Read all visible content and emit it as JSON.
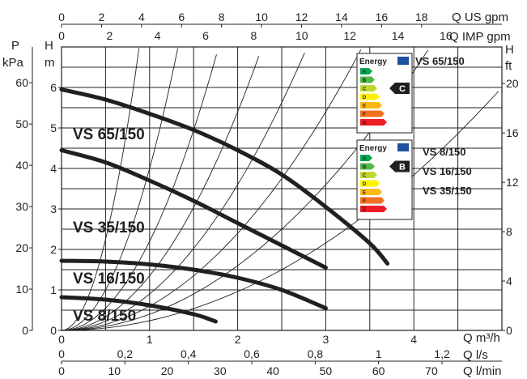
{
  "chart_data": {
    "type": "line",
    "title": "",
    "axes": {
      "bottom_primary": {
        "label": "Q m³/h",
        "ticks": [
          "0",
          "1",
          "2",
          "3",
          "4"
        ],
        "range": [
          0,
          5
        ]
      },
      "bottom_secondary_1": {
        "label": "Q l/s",
        "ticks": [
          "0",
          "0,2",
          "0,4",
          "0,6",
          "0,8",
          "1",
          "1,2"
        ]
      },
      "bottom_secondary_2": {
        "label": "Q l/min",
        "ticks": [
          "0",
          "10",
          "20",
          "30",
          "40",
          "50",
          "60",
          "70"
        ]
      },
      "top_primary": {
        "label": "Q US gpm",
        "ticks": [
          "0",
          "2",
          "4",
          "6",
          "8",
          "10",
          "12",
          "14",
          "16",
          "18"
        ]
      },
      "top_secondary": {
        "label": "Q IMP gpm",
        "ticks": [
          "0",
          "2",
          "4",
          "6",
          "8",
          "10",
          "12",
          "14",
          "16"
        ]
      },
      "left_primary": {
        "label_top": "H",
        "label_bottom": "m",
        "ticks": [
          "0",
          "1",
          "2",
          "3",
          "4",
          "5",
          "6"
        ],
        "range": [
          0,
          7
        ]
      },
      "left_secondary": {
        "label_top": "P",
        "label_bottom": "kPa",
        "ticks": [
          "0",
          "10",
          "20",
          "30",
          "40",
          "50",
          "60"
        ]
      },
      "right": {
        "label_top": "H",
        "label_bottom": "ft",
        "ticks": [
          "0",
          "4",
          "8",
          "12",
          "16",
          "20"
        ]
      }
    },
    "grid": true,
    "series": [
      {
        "name": "VS 65/150",
        "x": [
          0.0,
          0.5,
          1.0,
          1.5,
          2.0,
          2.5,
          3.0,
          3.5,
          3.7
        ],
        "y": [
          5.95,
          5.7,
          5.35,
          4.95,
          4.45,
          3.85,
          3.05,
          2.15,
          1.65
        ]
      },
      {
        "name": "VS 35/150",
        "x": [
          0.0,
          0.5,
          1.0,
          1.5,
          2.0,
          2.5,
          3.0
        ],
        "y": [
          4.45,
          4.15,
          3.7,
          3.2,
          2.65,
          2.1,
          1.55
        ]
      },
      {
        "name": "VS 16/150",
        "x": [
          0.0,
          0.5,
          1.0,
          1.5,
          2.0,
          2.5,
          3.0
        ],
        "y": [
          1.72,
          1.7,
          1.63,
          1.5,
          1.3,
          1.0,
          0.55
        ]
      },
      {
        "name": "VS 8/150",
        "x": [
          0.0,
          0.5,
          1.0,
          1.5,
          1.75
        ],
        "y": [
          0.82,
          0.76,
          0.62,
          0.4,
          0.22
        ]
      }
    ],
    "system_curves_k": [
      9.0,
      4.0,
      2.2,
      1.35,
      0.9,
      0.6,
      0.4,
      0.24
    ],
    "energy_labels": [
      {
        "brand_word": "Energy",
        "classes": [
          "A",
          "B",
          "C",
          "D",
          "E",
          "F",
          "G"
        ],
        "rating": "C",
        "models": [
          "VS 65/150"
        ]
      },
      {
        "brand_word": "Energy",
        "classes": [
          "A",
          "B",
          "C",
          "D",
          "E",
          "F",
          "G"
        ],
        "rating": "B",
        "models": [
          "VS 8/150",
          "VS 16/150",
          "VS 35/150"
        ]
      }
    ],
    "colors": {
      "curve": "#231f20",
      "grid": "#231f20",
      "class_colors": [
        "#00a651",
        "#50b848",
        "#bfd730",
        "#fff200",
        "#fdb913",
        "#f37021",
        "#ed1c24"
      ]
    }
  }
}
